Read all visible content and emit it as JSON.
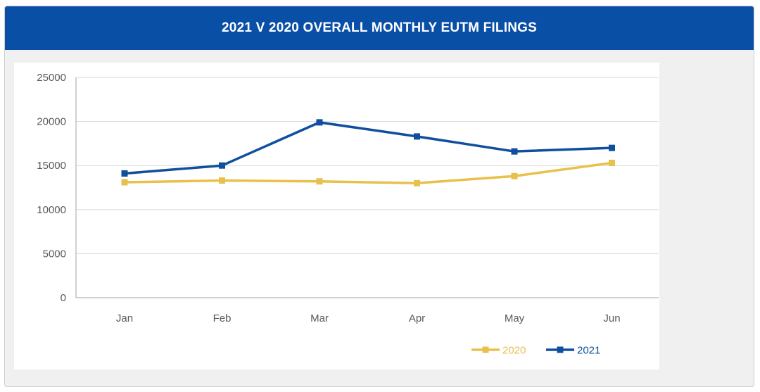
{
  "header": {
    "title": "2021 V 2020 OVERALL MONTHLY EUTM FILINGS"
  },
  "colors": {
    "header_bg": "#0a4fa6",
    "series_2020": "#e8c04c",
    "series_2021": "#0f4f9e",
    "grid": "#d9d9d9",
    "axis": "#a6a6a6"
  },
  "chart_data": {
    "type": "line",
    "title": "2021 V 2020 OVERALL MONTHLY EUTM FILINGS",
    "xlabel": "",
    "ylabel": "",
    "categories": [
      "Jan",
      "Feb",
      "Mar",
      "Apr",
      "May",
      "Jun"
    ],
    "ylim": [
      0,
      25000
    ],
    "yticks": [
      0,
      5000,
      10000,
      15000,
      20000,
      25000
    ],
    "ytick_labels": [
      "0",
      "5000",
      "10000",
      "15000",
      "20000",
      "25000"
    ],
    "grid": true,
    "legend_position": "bottom-right",
    "series": [
      {
        "name": "2020",
        "color": "#e8c04c",
        "values": [
          13100,
          13300,
          13200,
          13000,
          13800,
          15300
        ]
      },
      {
        "name": "2021",
        "color": "#0f4f9e",
        "values": [
          14100,
          15000,
          19900,
          18300,
          16600,
          17000
        ]
      }
    ]
  }
}
